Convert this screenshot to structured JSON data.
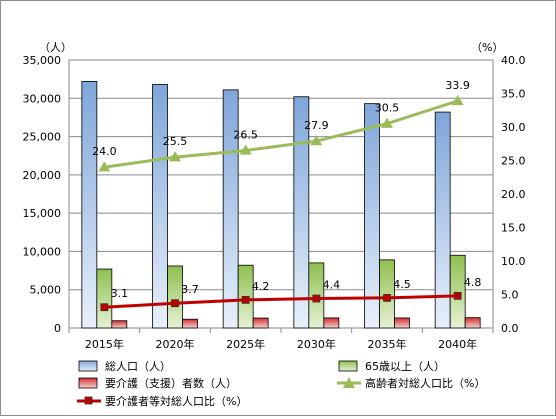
{
  "chart_data": {
    "type": "bar",
    "categories": [
      "2015年",
      "2020年",
      "2025年",
      "2030年",
      "2035年",
      "2040年"
    ],
    "left_axis": {
      "unit_label": "（人）",
      "min": 0,
      "max": 35000,
      "step": 5000,
      "ticks": [
        "0",
        "5,000",
        "10,000",
        "15,000",
        "20,000",
        "25,000",
        "30,000",
        "35,000"
      ]
    },
    "right_axis": {
      "unit_label": "（%）",
      "min": 0,
      "max": 40,
      "step": 5,
      "ticks": [
        "0.0",
        "5.0",
        "10.0",
        "15.0",
        "20.0",
        "25.0",
        "30.0",
        "35.0",
        "40.0"
      ]
    },
    "grid": true,
    "legend_position": "bottom",
    "series": [
      {
        "name": "総人口（人）",
        "type": "bar",
        "axis": "left",
        "color": "#7fa6d9",
        "values": [
          32200,
          31800,
          31100,
          30200,
          29300,
          28200
        ]
      },
      {
        "name": "65歳以上（人）",
        "type": "bar",
        "axis": "left",
        "color": "#8fbf4f",
        "values": [
          7700,
          8100,
          8200,
          8500,
          8900,
          9500
        ]
      },
      {
        "name": "要介護（支援）者数（人）",
        "type": "bar",
        "axis": "left",
        "color": "#d12f2f",
        "values": [
          950,
          1150,
          1300,
          1320,
          1310,
          1350
        ]
      },
      {
        "name": "高齢者対総人口比（%）",
        "type": "line",
        "axis": "right",
        "color": "#9bbb59",
        "marker": "triangle",
        "values": [
          24.0,
          25.5,
          26.5,
          27.9,
          30.5,
          33.9
        ],
        "labels": [
          "24.0",
          "25.5",
          "26.5",
          "27.9",
          "30.5",
          "33.9"
        ]
      },
      {
        "name": "要介護者等対総人口比（%）",
        "type": "line",
        "axis": "right",
        "color": "#c00000",
        "marker": "square",
        "values": [
          3.1,
          3.7,
          4.2,
          4.4,
          4.5,
          4.8
        ],
        "labels": [
          "3.1",
          "3.7",
          "4.2",
          "4.4",
          "4.5",
          "4.8"
        ]
      }
    ]
  }
}
